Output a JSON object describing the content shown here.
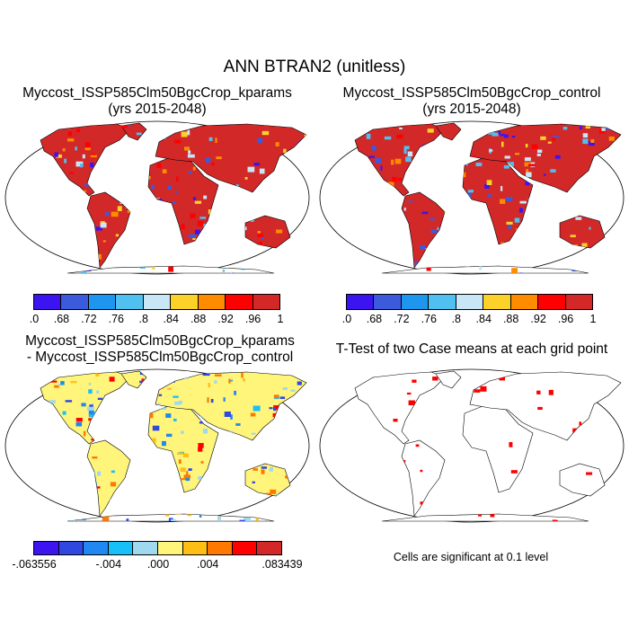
{
  "title": "ANN BTRAN2 (unitless)",
  "panels": [
    {
      "title_line1": "Myccost_ISSP585Clm50BgcCrop_kparams",
      "title_line2": "(yrs 2015-2048)",
      "land_color": "#d22828"
    },
    {
      "title_line1": "Myccost_ISSP585Clm50BgcCrop_control",
      "title_line2": "(yrs 2015-2048)",
      "land_color": "#d22828"
    },
    {
      "title_line1": "Myccost_ISSP585Clm50BgcCrop_kparams",
      "title_line2": "- Myccost_ISSP585Clm50BgcCrop_control",
      "land_color": "#fff57a"
    },
    {
      "title_line1": "T-Test of two Case means at each grid point",
      "land_color": "#ffffff"
    }
  ],
  "chart_data": [
    {
      "type": "heatmap",
      "title": "Myccost_ISSP585Clm50BgcCrop_kparams (yrs 2015-2048)",
      "colorbar": {
        "labels": [
          ".0",
          ".68",
          ".72",
          ".76",
          ".8",
          ".84",
          ".88",
          ".92",
          ".96",
          "1"
        ],
        "colors": [
          "#3c14f0",
          "#3c5adc",
          "#1e96f0",
          "#50c0f0",
          "#c8e6f5",
          "#fcd22a",
          "#ff8c00",
          "#ff0000",
          "#d22828"
        ]
      }
    },
    {
      "type": "heatmap",
      "title": "Myccost_ISSP585Clm50BgcCrop_control (yrs 2015-2048)",
      "colorbar": {
        "labels": [
          ".0",
          ".68",
          ".72",
          ".76",
          ".8",
          ".84",
          ".88",
          ".92",
          ".96",
          "1"
        ],
        "colors": [
          "#3c14f0",
          "#3c5adc",
          "#1e96f0",
          "#50c0f0",
          "#c8e6f5",
          "#fcd22a",
          "#ff8c00",
          "#ff0000",
          "#d22828"
        ]
      }
    },
    {
      "type": "heatmap",
      "title": "Myccost_ISSP585Clm50BgcCrop_kparams - Myccost_ISSP585Clm50BgcCrop_control",
      "colorbar": {
        "labels": [
          "-.063556",
          "-.004",
          ".000",
          ".004",
          ".083439"
        ],
        "colors": [
          "#3c14f0",
          "#3048e0",
          "#2088f0",
          "#18c0f8",
          "#a0d8f0",
          "#fff57a",
          "#ffbe14",
          "#ff7800",
          "#ff0000",
          "#d22828"
        ]
      }
    },
    {
      "type": "heatmap",
      "title": "T-Test of two Case means at each grid point",
      "note": "Cells are significant at 0.1 level",
      "significant_color": "#ff0000"
    }
  ]
}
